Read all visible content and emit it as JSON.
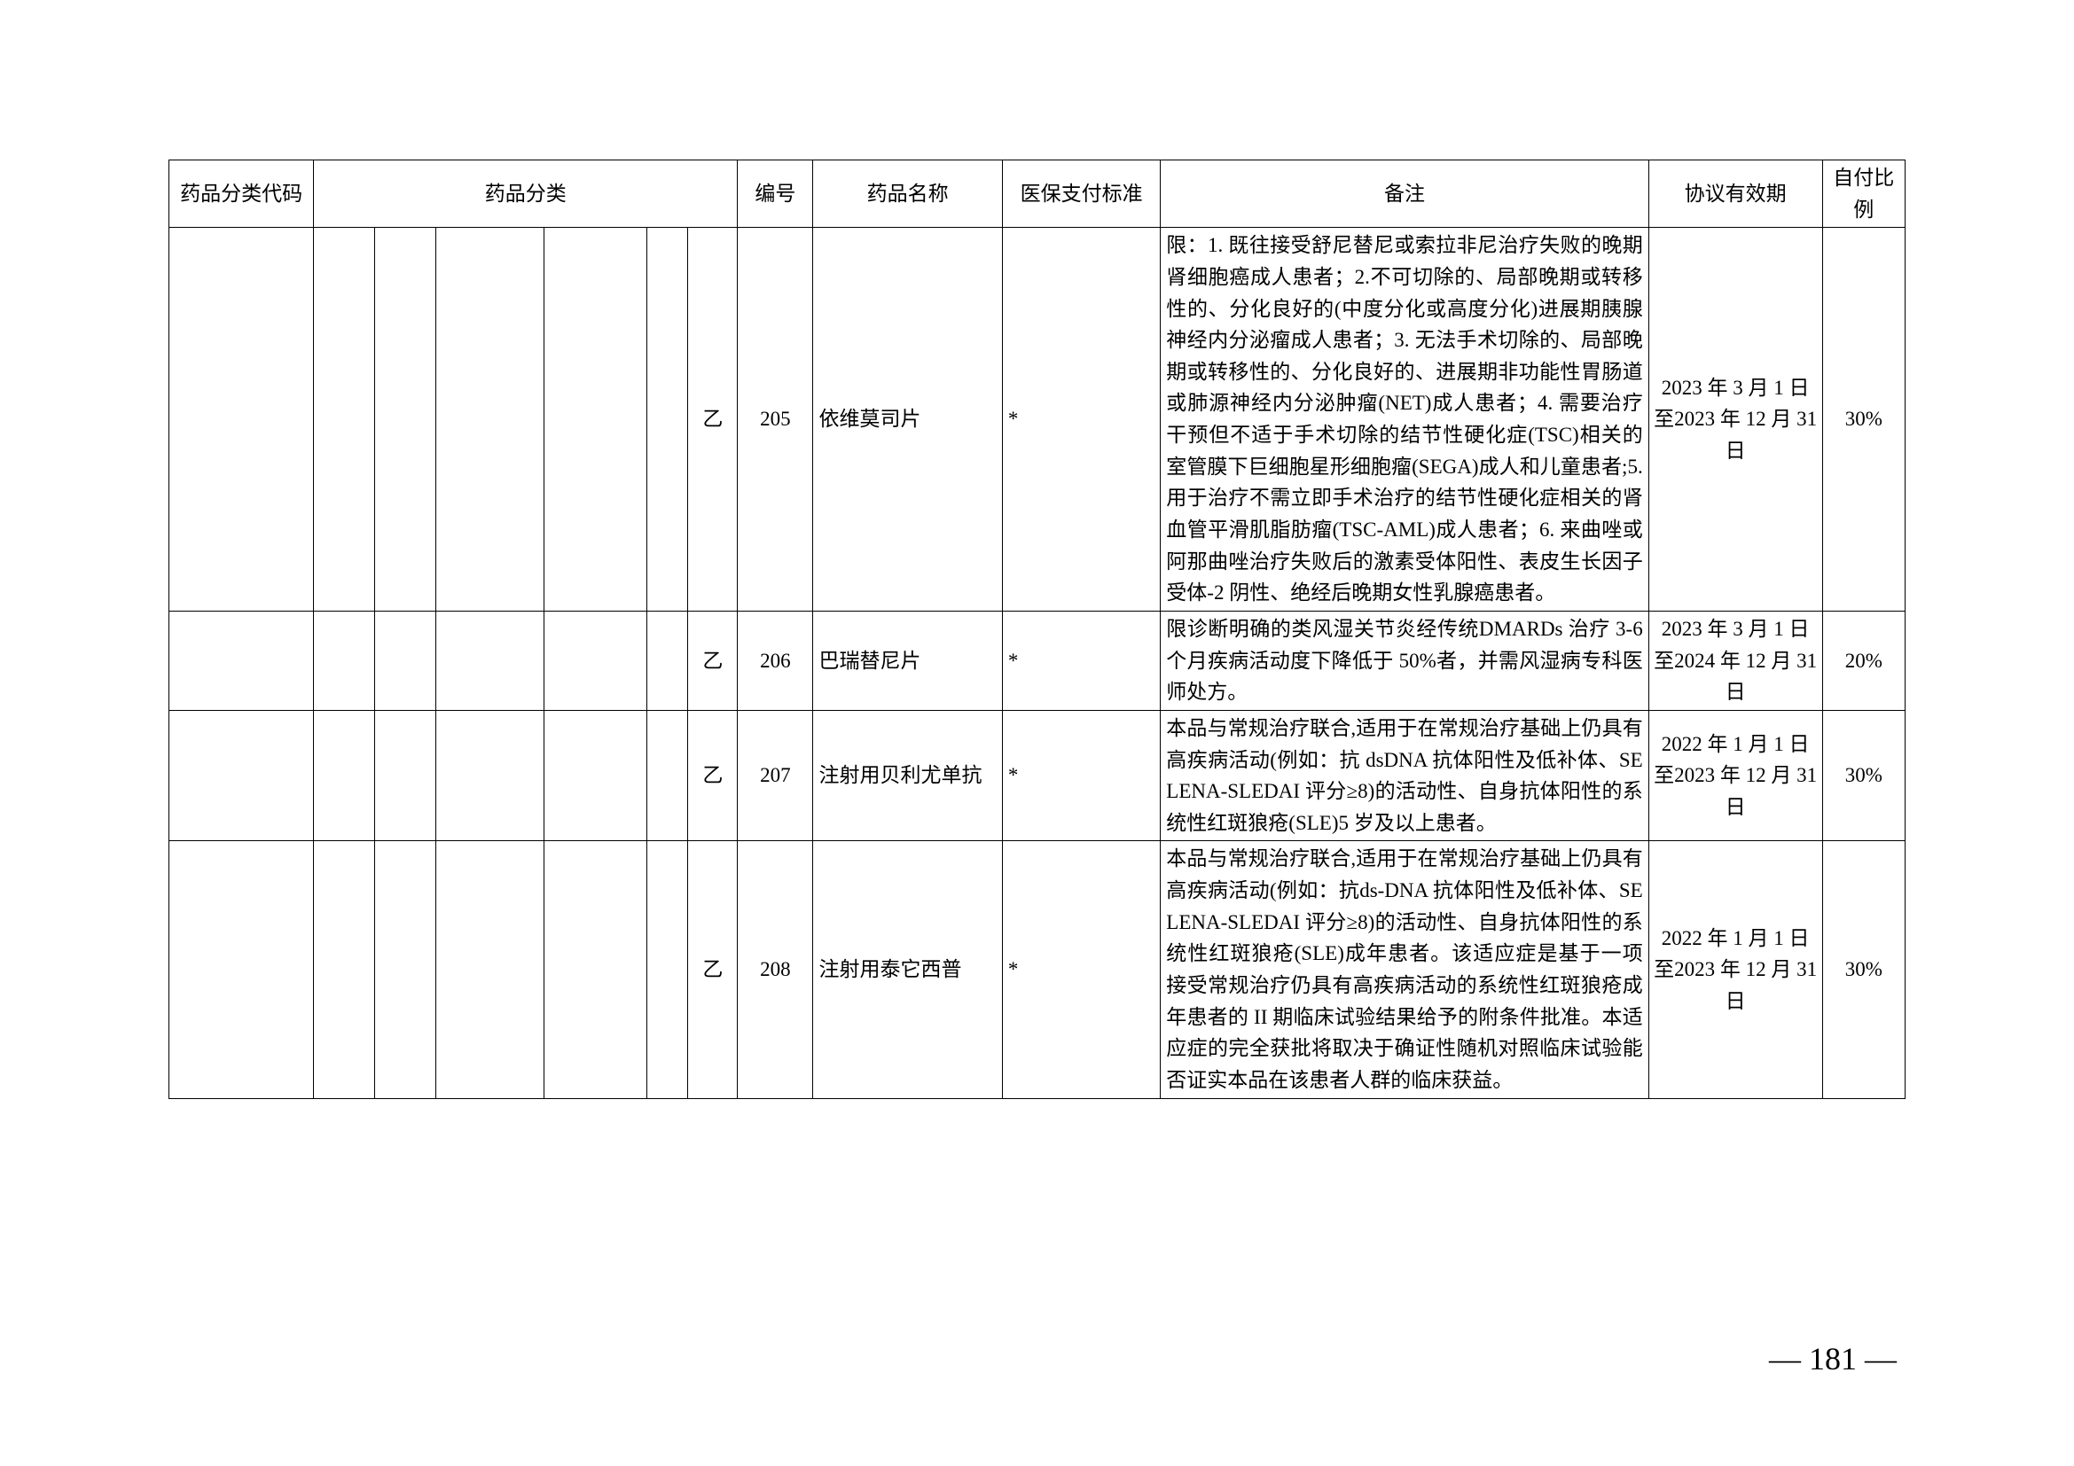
{
  "table": {
    "headers": {
      "code": "药品分类代码",
      "category": "药品分类",
      "class": "",
      "number": "编号",
      "name": "药品名称",
      "standard": "医保支付标准",
      "note": "备注",
      "valid": "协议有效期",
      "ratio": "自付比例"
    },
    "rows": [
      {
        "class": "乙",
        "number": "205",
        "name": "依维莫司片",
        "standard": "*",
        "note": "限：1. 既往接受舒尼替尼或索拉非尼治疗失败的晚期肾细胞癌成人患者；2.不可切除的、局部晚期或转移性的、分化良好的(中度分化或高度分化)进展期胰腺神经内分泌瘤成人患者；3. 无法手术切除的、局部晚期或转移性的、分化良好的、进展期非功能性胃肠道或肺源神经内分泌肿瘤(NET)成人患者；4. 需要治疗干预但不适于手术切除的结节性硬化症(TSC)相关的室管膜下巨细胞星形细胞瘤(SEGA)成人和儿童患者;5. 用于治疗不需立即手术治疗的结节性硬化症相关的肾血管平滑肌脂肪瘤(TSC-AML)成人患者；6. 来曲唑或阿那曲唑治疗失败后的激素受体阳性、表皮生长因子受体-2 阴性、绝经后晚期女性乳腺癌患者。",
        "valid": "2023 年 3 月 1 日至2023 年 12 月 31 日",
        "ratio": "30%"
      },
      {
        "class": "乙",
        "number": "206",
        "name": "巴瑞替尼片",
        "standard": "*",
        "note": "限诊断明确的类风湿关节炎经传统DMARDs 治疗 3-6 个月疾病活动度下降低于 50%者，并需风湿病专科医师处方。",
        "valid": "2023 年 3 月 1 日至2024 年 12 月 31 日",
        "ratio": "20%"
      },
      {
        "class": "乙",
        "number": "207",
        "name": "注射用贝利尤单抗",
        "standard": "*",
        "note": "本品与常规治疗联合,适用于在常规治疗基础上仍具有高疾病活动(例如：抗 dsDNA 抗体阳性及低补体、SELENA-SLEDAI 评分≥8)的活动性、自身抗体阳性的系统性红斑狼疮(SLE)5 岁及以上患者。",
        "valid": "2022 年 1 月 1 日至2023 年 12 月 31 日",
        "ratio": "30%"
      },
      {
        "class": "乙",
        "number": "208",
        "name": "注射用泰它西普",
        "standard": "*",
        "note": "本品与常规治疗联合,适用于在常规治疗基础上仍具有高疾病活动(例如：抗ds-DNA 抗体阳性及低补体、SELENA-SLEDAI 评分≥8)的活动性、自身抗体阳性的系统性红斑狼疮(SLE)成年患者。该适应症是基于一项接受常规治疗仍具有高疾病活动的系统性红斑狼疮成年患者的 II 期临床试验结果给予的附条件批准。本适应症的完全获批将取决于确证性随机对照临床试验能否证实本品在该患者人群的临床获益。",
        "valid": "2022 年 1 月 1 日至2023 年 12 月 31 日",
        "ratio": "30%"
      }
    ]
  },
  "page_number": "— 181 —",
  "styles": {
    "font_size_cell": 23,
    "font_size_pagenum": 36,
    "border_color": "#000000",
    "background_color": "#ffffff",
    "text_color": "#000000"
  }
}
